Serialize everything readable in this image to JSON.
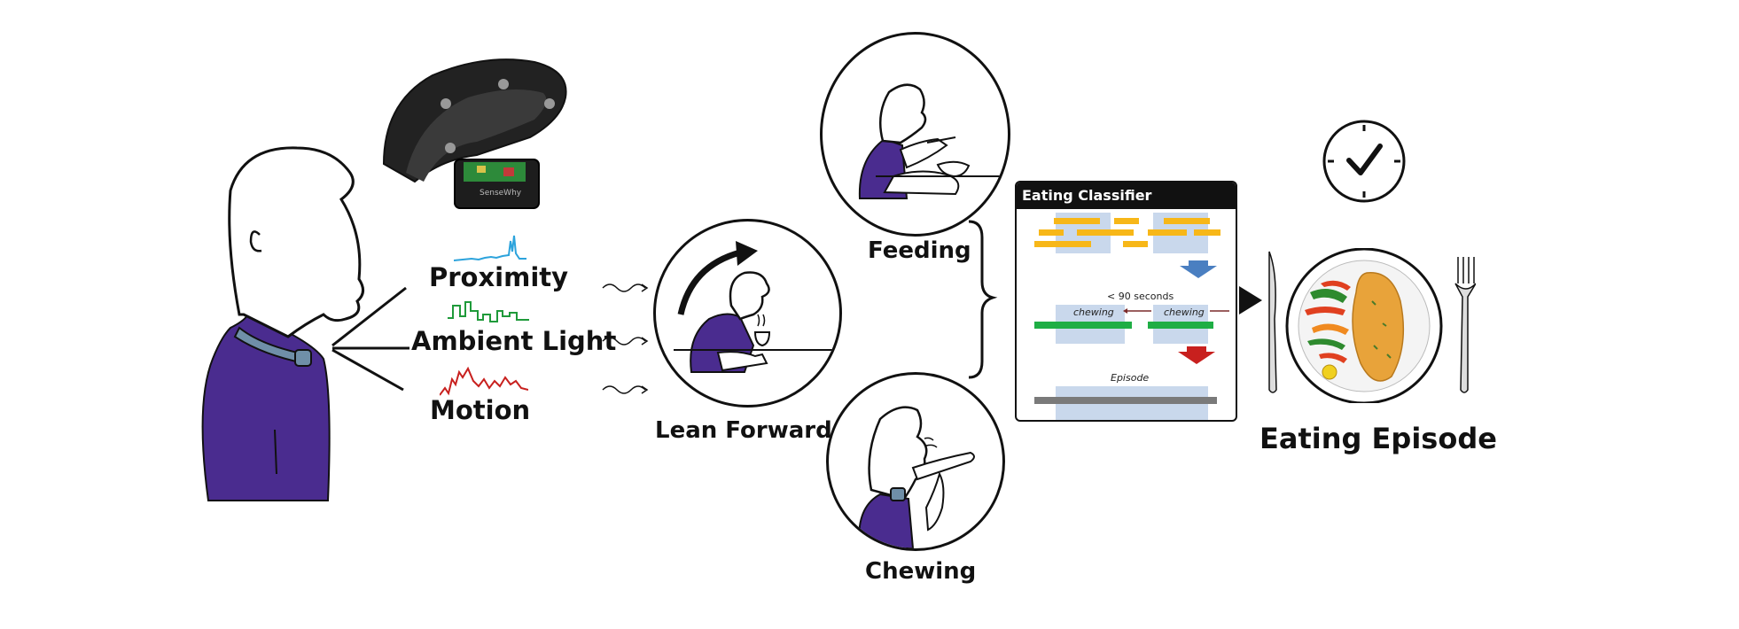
{
  "sensors": {
    "proximity": "Proximity",
    "ambient_light": "Ambient Light",
    "motion": "Motion"
  },
  "device": {
    "brand": "SenseWhy"
  },
  "steps": {
    "lean_forward": "Lean Forward",
    "feeding": "Feeding",
    "chewing": "Chewing"
  },
  "classifier": {
    "title": "Eating Classifier",
    "gap_label": "< 90 seconds",
    "chewing_left": "chewing",
    "chewing_right": "chewing",
    "episode": "Episode"
  },
  "result": {
    "label": "Eating Episode"
  },
  "colors": {
    "shirt": "#4a2c8f",
    "collar": "#6f8fa8",
    "proximity_signal": "#2ca3dc",
    "light_signal": "#1f9a3a",
    "motion_signal": "#c8201e",
    "feeding_bar": "#f7b718",
    "chewing_bar": "#1fae45",
    "episode_bar": "#7a7a7a",
    "window": "#c9d8ec",
    "arrow_blue": "#4a7fc1",
    "arrow_red": "#c8201e"
  }
}
